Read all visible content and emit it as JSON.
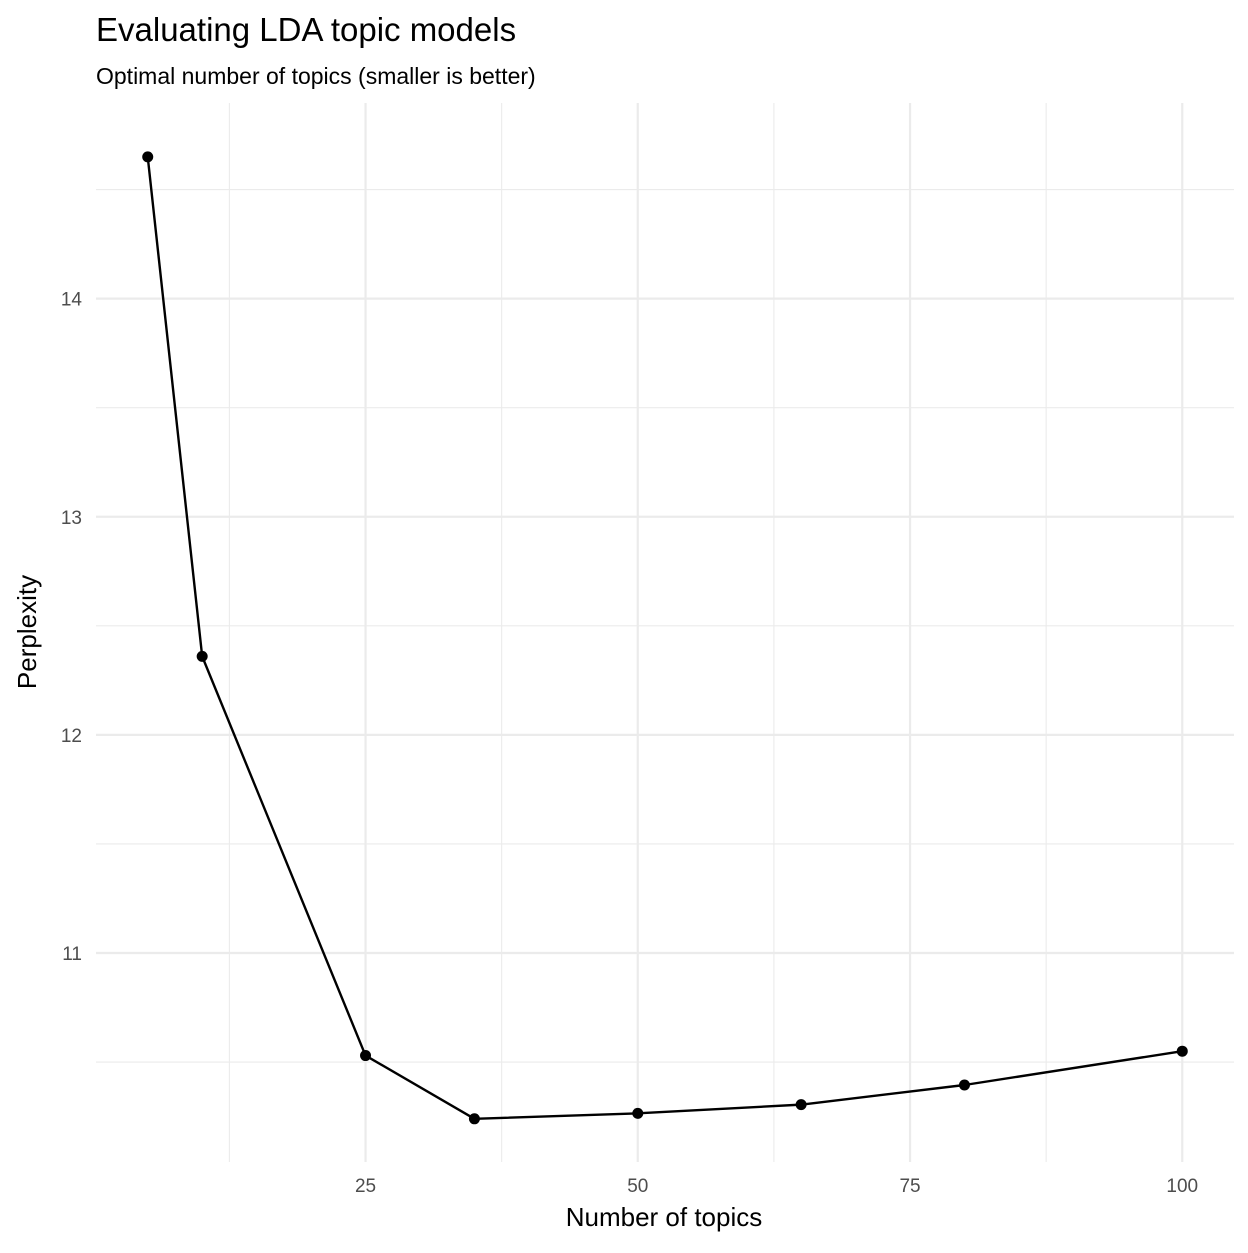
{
  "chart_data": {
    "type": "line",
    "title": "Evaluating LDA topic models",
    "subtitle": "Optimal number of topics (smaller is better)",
    "xlabel": "Number of topics",
    "ylabel": "Perplexity",
    "x_ticks": [
      25,
      50,
      75,
      100
    ],
    "x_tick_labels": [
      "25",
      "50",
      "75",
      "100"
    ],
    "y_ticks": [
      11,
      12,
      13,
      14
    ],
    "y_tick_labels": [
      "11",
      "12",
      "13",
      "14"
    ],
    "xlim": [
      0.25,
      104.75
    ],
    "ylim": [
      10.042,
      14.897
    ],
    "grid": true,
    "legend": "none",
    "line_color": "#000000",
    "grid_color": "#ebebeb",
    "series": [
      {
        "x": [
          5,
          10,
          25,
          35,
          50,
          65,
          80,
          100
        ],
        "y": [
          14.65,
          12.36,
          10.53,
          10.24,
          10.265,
          10.305,
          10.395,
          10.55
        ]
      }
    ]
  }
}
